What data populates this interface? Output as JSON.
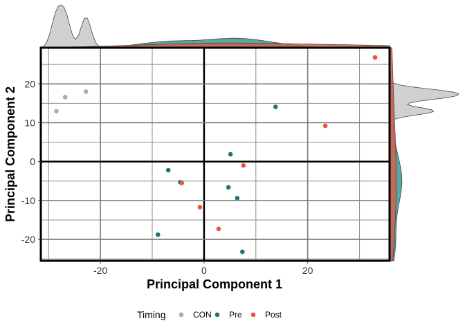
{
  "chart_data": {
    "type": "scatter",
    "xlabel": "Principal Component 1",
    "ylabel": "Principal Component 2",
    "xlim": [
      -31.5,
      35.8
    ],
    "ylim": [
      -25.5,
      29.3
    ],
    "xticks": [
      -20,
      0,
      20
    ],
    "yticks": [
      -20,
      -10,
      0,
      10,
      20
    ],
    "grid": true,
    "zero_lines": true,
    "marginal_density": true,
    "legend": {
      "title": "Timing",
      "placement": "bottom"
    },
    "series": [
      {
        "name": "CON",
        "color": "#aaaaaa",
        "density_fill": "#c8c8c8",
        "points": [
          {
            "x": -28.5,
            "y": 13.0
          },
          {
            "x": -26.8,
            "y": 16.6
          },
          {
            "x": -22.8,
            "y": 18.0
          }
        ]
      },
      {
        "name": "Pre",
        "color": "#17787a",
        "density_fill": "#3e9690",
        "points": [
          {
            "x": 13.8,
            "y": 14.1
          },
          {
            "x": 5.1,
            "y": 1.9
          },
          {
            "x": -6.9,
            "y": -2.2
          },
          {
            "x": -4.6,
            "y": -5.3
          },
          {
            "x": 4.7,
            "y": -6.6
          },
          {
            "x": 6.4,
            "y": -9.4
          },
          {
            "x": -8.9,
            "y": -18.8
          },
          {
            "x": 7.4,
            "y": -23.2
          }
        ]
      },
      {
        "name": "Post",
        "color": "#e8533a",
        "density_fill": "#d4624e",
        "points": [
          {
            "x": 33.0,
            "y": 26.8
          },
          {
            "x": 23.4,
            "y": 9.2
          },
          {
            "x": 7.6,
            "y": -1.0
          },
          {
            "x": -4.3,
            "y": -5.5
          },
          {
            "x": -0.8,
            "y": -11.7
          },
          {
            "x": 2.8,
            "y": -17.3
          }
        ]
      }
    ]
  }
}
